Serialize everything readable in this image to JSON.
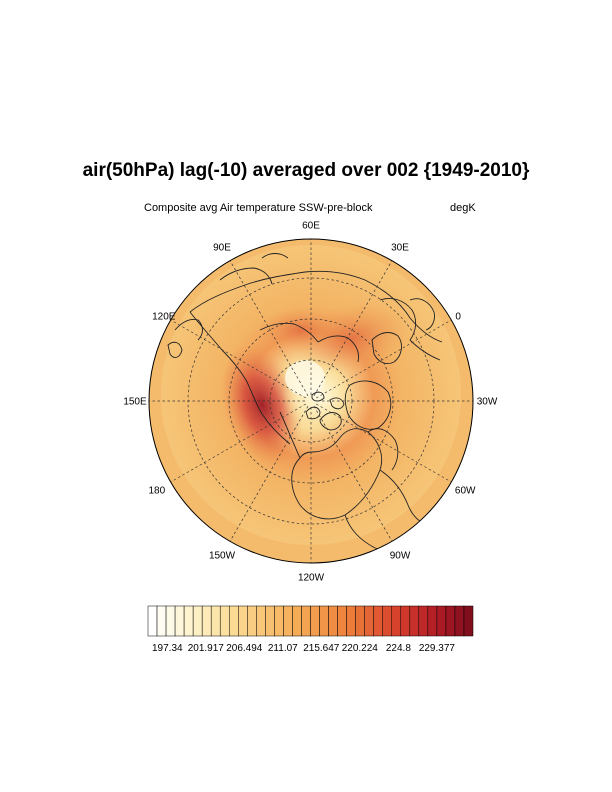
{
  "title": "air(50hPa) lag(-10) averaged over 002 {1949-2010}",
  "subtitle": "Composite avg Air temperature SSW-pre-block",
  "units": "degK",
  "map": {
    "projection": "north-polar-stereographic",
    "lon_labels": [
      "60E",
      "30E",
      "0",
      "30W",
      "60W",
      "90W",
      "120W",
      "150W",
      "180",
      "150E",
      "120E",
      "90E"
    ],
    "colors": {
      "coast": "#000000",
      "base": "#f2b463",
      "cold_center": "#fdf3c6",
      "warm_core": "#b4202c"
    }
  },
  "colorbar": {
    "tick_labels": [
      "197.34",
      "201.917",
      "206.494",
      "211.07",
      "215.647",
      "220.224",
      "224.8",
      "229.377"
    ],
    "num_boxes": 36,
    "min": 195.05,
    "max": 233.67
  }
}
